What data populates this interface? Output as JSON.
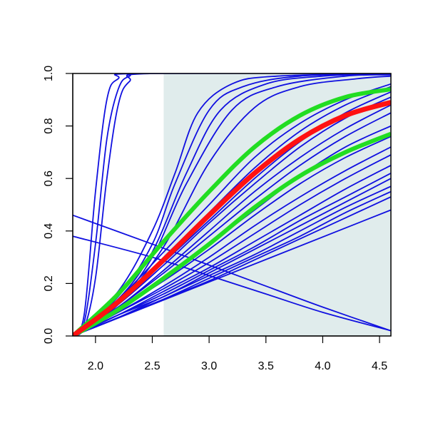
{
  "chart_data": {
    "type": "line",
    "title": "",
    "xlabel": "",
    "ylabel": "",
    "xlim": [
      1.8,
      4.6
    ],
    "ylim": [
      0.0,
      1.0
    ],
    "x_ticks": [
      "2.0",
      "2.5",
      "3.0",
      "3.5",
      "4.0",
      "4.5"
    ],
    "y_ticks": [
      "0.0",
      "0.2",
      "0.4",
      "0.6",
      "0.8",
      "1.0"
    ],
    "grid": false,
    "legend": "none",
    "shaded_region": {
      "x_from": 2.6,
      "x_to": 4.6,
      "color": "#e0ecec"
    },
    "colors": {
      "curves": "#1010e0",
      "envelope": "#22dd22",
      "mean": "#ff1111"
    },
    "series": [
      {
        "kind": "steep",
        "points": [
          [
            1.8,
            0.0
          ],
          [
            1.9,
            0.08
          ],
          [
            2.0,
            0.55
          ],
          [
            2.1,
            0.9
          ],
          [
            2.2,
            0.98
          ],
          [
            2.4,
            1.0
          ],
          [
            4.6,
            1.0
          ]
        ]
      },
      {
        "kind": "steep",
        "points": [
          [
            1.8,
            0.0
          ],
          [
            1.9,
            0.05
          ],
          [
            2.0,
            0.35
          ],
          [
            2.1,
            0.75
          ],
          [
            2.2,
            0.94
          ],
          [
            2.3,
            0.99
          ],
          [
            2.5,
            1.0
          ],
          [
            4.6,
            1.0
          ]
        ]
      },
      {
        "kind": "steep",
        "points": [
          [
            1.8,
            0.0
          ],
          [
            1.9,
            0.03
          ],
          [
            2.0,
            0.22
          ],
          [
            2.1,
            0.6
          ],
          [
            2.2,
            0.88
          ],
          [
            2.3,
            0.97
          ],
          [
            2.5,
            1.0
          ],
          [
            4.6,
            1.0
          ]
        ]
      },
      {
        "kind": "sigmoid",
        "points": [
          [
            1.8,
            0.0
          ],
          [
            2.2,
            0.17
          ],
          [
            2.5,
            0.4
          ],
          [
            2.7,
            0.62
          ],
          [
            2.9,
            0.85
          ],
          [
            3.2,
            0.96
          ],
          [
            3.6,
            0.99
          ],
          [
            4.6,
            1.0
          ]
        ]
      },
      {
        "kind": "sigmoid",
        "points": [
          [
            1.8,
            0.0
          ],
          [
            2.2,
            0.15
          ],
          [
            2.5,
            0.35
          ],
          [
            2.7,
            0.58
          ],
          [
            3.0,
            0.86
          ],
          [
            3.3,
            0.95
          ],
          [
            3.8,
            0.99
          ],
          [
            4.6,
            1.0
          ]
        ]
      },
      {
        "kind": "sigmoid",
        "points": [
          [
            1.8,
            0.0
          ],
          [
            2.2,
            0.14
          ],
          [
            2.5,
            0.32
          ],
          [
            2.8,
            0.62
          ],
          [
            3.1,
            0.86
          ],
          [
            3.5,
            0.96
          ],
          [
            4.0,
            0.99
          ],
          [
            4.6,
            1.0
          ]
        ]
      },
      {
        "kind": "sigmoid",
        "points": [
          [
            1.8,
            0.0
          ],
          [
            2.2,
            0.13
          ],
          [
            2.5,
            0.3
          ],
          [
            2.8,
            0.58
          ],
          [
            3.2,
            0.86
          ],
          [
            3.6,
            0.95
          ],
          [
            4.2,
            0.99
          ],
          [
            4.6,
            0.995
          ]
        ]
      },
      {
        "kind": "sigmoid",
        "points": [
          [
            1.8,
            0.0
          ],
          [
            2.2,
            0.12
          ],
          [
            2.6,
            0.34
          ],
          [
            3.0,
            0.66
          ],
          [
            3.4,
            0.87
          ],
          [
            3.8,
            0.95
          ],
          [
            4.3,
            0.98
          ],
          [
            4.6,
            0.99
          ]
        ]
      },
      {
        "kind": "mid",
        "points": [
          [
            1.8,
            0.0
          ],
          [
            2.2,
            0.14
          ],
          [
            2.6,
            0.32
          ],
          [
            3.0,
            0.5
          ],
          [
            3.4,
            0.68
          ],
          [
            3.8,
            0.81
          ],
          [
            4.2,
            0.9
          ],
          [
            4.6,
            0.96
          ]
        ]
      },
      {
        "kind": "mid",
        "points": [
          [
            1.8,
            0.0
          ],
          [
            2.2,
            0.13
          ],
          [
            2.6,
            0.3
          ],
          [
            3.0,
            0.47
          ],
          [
            3.4,
            0.64
          ],
          [
            3.8,
            0.78
          ],
          [
            4.2,
            0.88
          ],
          [
            4.6,
            0.95
          ]
        ]
      },
      {
        "kind": "mid",
        "points": [
          [
            1.8,
            0.0
          ],
          [
            2.2,
            0.12
          ],
          [
            2.6,
            0.28
          ],
          [
            3.0,
            0.44
          ],
          [
            3.4,
            0.6
          ],
          [
            3.8,
            0.74
          ],
          [
            4.2,
            0.85
          ],
          [
            4.6,
            0.93
          ]
        ]
      },
      {
        "kind": "mid",
        "points": [
          [
            1.8,
            0.0
          ],
          [
            2.2,
            0.12
          ],
          [
            2.6,
            0.27
          ],
          [
            3.0,
            0.43
          ],
          [
            3.4,
            0.58
          ],
          [
            3.8,
            0.72
          ],
          [
            4.2,
            0.83
          ],
          [
            4.6,
            0.91
          ]
        ]
      },
      {
        "kind": "mid",
        "points": [
          [
            1.8,
            0.0
          ],
          [
            2.2,
            0.11
          ],
          [
            2.6,
            0.25
          ],
          [
            3.0,
            0.4
          ],
          [
            3.4,
            0.55
          ],
          [
            3.8,
            0.68
          ],
          [
            4.2,
            0.79
          ],
          [
            4.6,
            0.88
          ]
        ]
      },
      {
        "kind": "mid",
        "points": [
          [
            1.8,
            0.0
          ],
          [
            2.2,
            0.11
          ],
          [
            2.6,
            0.24
          ],
          [
            3.0,
            0.38
          ],
          [
            3.4,
            0.52
          ],
          [
            3.8,
            0.65
          ],
          [
            4.2,
            0.76
          ],
          [
            4.6,
            0.85
          ]
        ]
      },
      {
        "kind": "mid",
        "points": [
          [
            1.8,
            0.0
          ],
          [
            2.2,
            0.1
          ],
          [
            2.6,
            0.22
          ],
          [
            3.0,
            0.35
          ],
          [
            3.4,
            0.48
          ],
          [
            3.8,
            0.61
          ],
          [
            4.2,
            0.72
          ],
          [
            4.6,
            0.8
          ]
        ]
      },
      {
        "kind": "mid",
        "points": [
          [
            1.8,
            0.0
          ],
          [
            2.2,
            0.1
          ],
          [
            2.6,
            0.21
          ],
          [
            3.0,
            0.33
          ],
          [
            3.4,
            0.46
          ],
          [
            3.8,
            0.58
          ],
          [
            4.2,
            0.68
          ],
          [
            4.6,
            0.76
          ]
        ]
      },
      {
        "kind": "mid",
        "points": [
          [
            1.8,
            0.0
          ],
          [
            2.2,
            0.09
          ],
          [
            2.6,
            0.19
          ],
          [
            3.0,
            0.3
          ],
          [
            3.4,
            0.42
          ],
          [
            3.8,
            0.53
          ],
          [
            4.2,
            0.63
          ],
          [
            4.6,
            0.72
          ]
        ]
      },
      {
        "kind": "mid",
        "points": [
          [
            1.8,
            0.0
          ],
          [
            2.2,
            0.09
          ],
          [
            2.6,
            0.18
          ],
          [
            3.0,
            0.28
          ],
          [
            3.4,
            0.39
          ],
          [
            3.8,
            0.5
          ],
          [
            4.2,
            0.6
          ],
          [
            4.6,
            0.69
          ]
        ]
      },
      {
        "kind": "mid",
        "points": [
          [
            1.8,
            0.0
          ],
          [
            2.2,
            0.08
          ],
          [
            2.6,
            0.17
          ],
          [
            3.0,
            0.26
          ],
          [
            3.4,
            0.36
          ],
          [
            3.8,
            0.46
          ],
          [
            4.2,
            0.56
          ],
          [
            4.6,
            0.65
          ]
        ]
      },
      {
        "kind": "mid",
        "points": [
          [
            1.8,
            0.0
          ],
          [
            2.2,
            0.08
          ],
          [
            2.6,
            0.16
          ],
          [
            3.0,
            0.25
          ],
          [
            3.4,
            0.34
          ],
          [
            3.8,
            0.44
          ],
          [
            4.2,
            0.53
          ],
          [
            4.6,
            0.62
          ]
        ]
      },
      {
        "kind": "mid",
        "points": [
          [
            1.8,
            0.0
          ],
          [
            2.2,
            0.08
          ],
          [
            2.6,
            0.15
          ],
          [
            3.0,
            0.24
          ],
          [
            3.4,
            0.33
          ],
          [
            3.8,
            0.42
          ],
          [
            4.2,
            0.51
          ],
          [
            4.6,
            0.6
          ]
        ]
      },
      {
        "kind": "mid",
        "points": [
          [
            1.8,
            0.0
          ],
          [
            2.2,
            0.07
          ],
          [
            2.6,
            0.15
          ],
          [
            3.0,
            0.23
          ],
          [
            3.4,
            0.31
          ],
          [
            3.8,
            0.4
          ],
          [
            4.2,
            0.49
          ],
          [
            4.6,
            0.57
          ]
        ]
      },
      {
        "kind": "mid",
        "points": [
          [
            1.8,
            0.0
          ],
          [
            2.2,
            0.07
          ],
          [
            2.6,
            0.14
          ],
          [
            3.0,
            0.22
          ],
          [
            3.4,
            0.3
          ],
          [
            3.8,
            0.38
          ],
          [
            4.2,
            0.47
          ],
          [
            4.6,
            0.55
          ]
        ]
      },
      {
        "kind": "mid",
        "points": [
          [
            1.8,
            0.0
          ],
          [
            2.2,
            0.07
          ],
          [
            2.6,
            0.14
          ],
          [
            3.0,
            0.21
          ],
          [
            3.4,
            0.29
          ],
          [
            3.8,
            0.37
          ],
          [
            4.2,
            0.45
          ],
          [
            4.6,
            0.53
          ]
        ]
      },
      {
        "kind": "linear",
        "points": [
          [
            1.8,
            0.0
          ],
          [
            4.6,
            0.48
          ]
        ]
      },
      {
        "kind": "decreasing",
        "points": [
          [
            1.8,
            0.46
          ],
          [
            2.5,
            0.35
          ],
          [
            3.0,
            0.27
          ],
          [
            3.5,
            0.19
          ],
          [
            4.0,
            0.11
          ],
          [
            4.6,
            0.02
          ]
        ]
      },
      {
        "kind": "decreasing",
        "points": [
          [
            1.8,
            0.38
          ],
          [
            2.5,
            0.3
          ],
          [
            3.0,
            0.23
          ],
          [
            3.5,
            0.16
          ],
          [
            4.0,
            0.09
          ],
          [
            4.6,
            0.02
          ]
        ]
      }
    ],
    "envelope_series": [
      {
        "points": [
          [
            1.8,
            0.0
          ],
          [
            2.2,
            0.16
          ],
          [
            2.6,
            0.36
          ],
          [
            3.0,
            0.55
          ],
          [
            3.4,
            0.72
          ],
          [
            3.8,
            0.84
          ],
          [
            4.2,
            0.91
          ],
          [
            4.6,
            0.94
          ]
        ]
      },
      {
        "points": [
          [
            1.8,
            0.0
          ],
          [
            2.2,
            0.1
          ],
          [
            2.6,
            0.22
          ],
          [
            3.0,
            0.35
          ],
          [
            3.4,
            0.49
          ],
          [
            3.8,
            0.61
          ],
          [
            4.2,
            0.7
          ],
          [
            4.6,
            0.77
          ]
        ]
      }
    ],
    "mean_series": {
      "points": [
        [
          1.8,
          0.0
        ],
        [
          2.2,
          0.13
        ],
        [
          2.6,
          0.29
        ],
        [
          3.0,
          0.46
        ],
        [
          3.4,
          0.62
        ],
        [
          3.8,
          0.75
        ],
        [
          4.2,
          0.84
        ],
        [
          4.6,
          0.89
        ]
      ]
    }
  }
}
